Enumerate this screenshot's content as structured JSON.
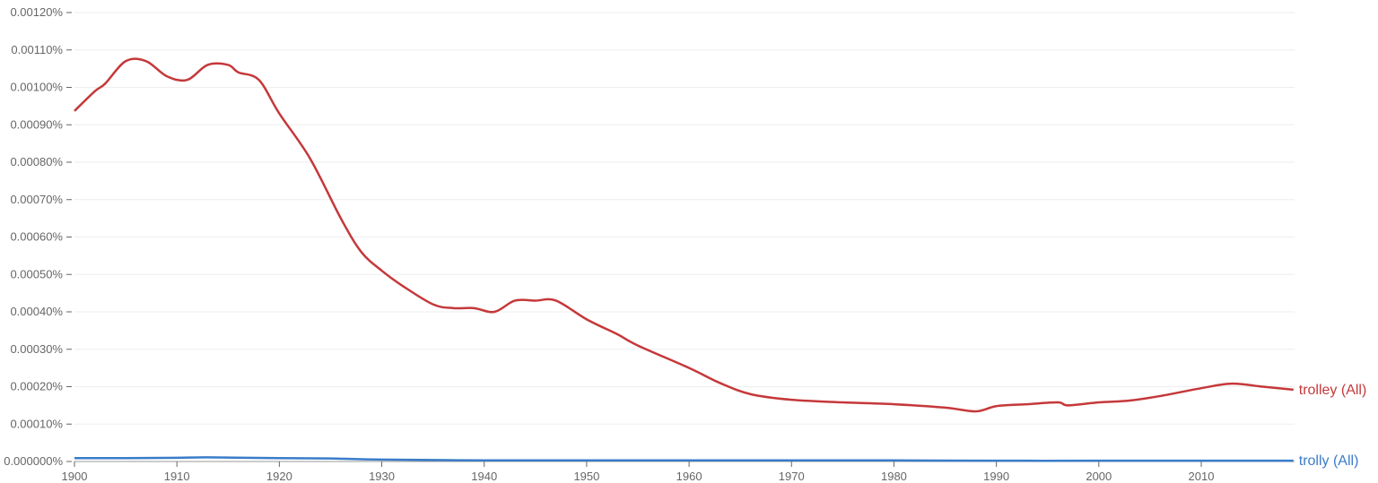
{
  "chart_data": {
    "type": "line",
    "title": "",
    "xlabel": "",
    "ylabel": "",
    "xlim": [
      1900,
      2019
    ],
    "ylim": [
      0,
      0.0012
    ],
    "grid": true,
    "y_ticks": [
      "0.000000%",
      "0.00010%",
      "0.00020%",
      "0.00030%",
      "0.00040%",
      "0.00050%",
      "0.00060%",
      "0.00070%",
      "0.00080%",
      "0.00090%",
      "0.00100%",
      "0.00110%",
      "0.00120%"
    ],
    "x_ticks": [
      "1900",
      "1910",
      "1920",
      "1930",
      "1940",
      "1950",
      "1960",
      "1970",
      "1980",
      "1990",
      "2000",
      "2010"
    ],
    "series": [
      {
        "name": "trolley (All)",
        "color": "#c5383a",
        "x": [
          1900,
          1902,
          1903,
          1905,
          1907,
          1909,
          1911,
          1913,
          1915,
          1916,
          1918,
          1920,
          1923,
          1926,
          1928,
          1930,
          1932,
          1935,
          1937,
          1939,
          1941,
          1943,
          1945,
          1947,
          1950,
          1953,
          1955,
          1960,
          1963,
          1966,
          1970,
          1975,
          1980,
          1985,
          1988,
          1990,
          1993,
          1996,
          1997,
          2000,
          2003,
          2006,
          2010,
          2013,
          2016,
          2019
        ],
        "y": [
          0.000937,
          0.00099,
          0.00101,
          0.00107,
          0.00107,
          0.00103,
          0.00102,
          0.00106,
          0.00106,
          0.00104,
          0.00102,
          0.00093,
          0.00081,
          0.00065,
          0.00056,
          0.00051,
          0.00047,
          0.00042,
          0.00041,
          0.00041,
          0.0004,
          0.00043,
          0.00043,
          0.00043,
          0.00038,
          0.00034,
          0.00031,
          0.00025,
          0.00021,
          0.00018,
          0.000165,
          0.000158,
          0.000153,
          0.000144,
          0.000134,
          0.000148,
          0.000153,
          0.000158,
          0.00015,
          0.000158,
          0.000163,
          0.000175,
          0.000196,
          0.000208,
          0.0002,
          0.000192
        ]
      },
      {
        "name": "trolly (All)",
        "color": "#3a7cc9",
        "x": [
          1900,
          1905,
          1910,
          1913,
          1920,
          1925,
          1930,
          1940,
          1950,
          1960,
          1970,
          1980,
          1990,
          2000,
          2010,
          2019
        ],
        "y": [
          9e-06,
          9e-06,
          1e-05,
          1.1e-05,
          9e-06,
          8e-06,
          5e-06,
          3e-06,
          3e-06,
          3e-06,
          3e-06,
          3e-06,
          2e-06,
          2e-06,
          2e-06,
          2e-06
        ]
      }
    ]
  }
}
